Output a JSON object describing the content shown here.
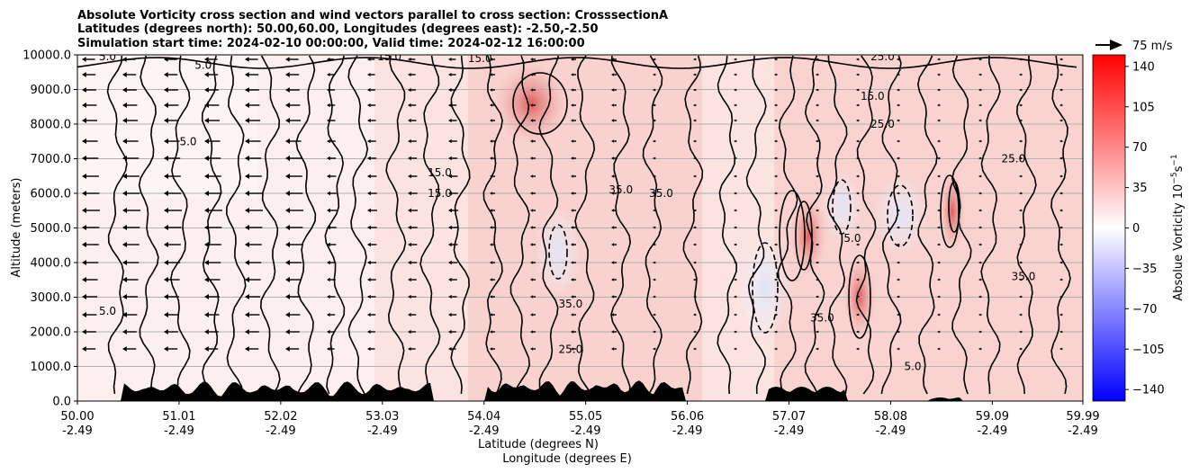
{
  "chart_data": {
    "type": "heatmap",
    "title_lines": [
      "Absolute Vorticity cross section and wind vectors parallel to cross section: CrosssectionA",
      "Latitudes (degrees north): 50.00,60.00, Longitudes (degrees east): -2.50,-2.50",
      "Simulation start time: 2024-02-10 00:00:00, Valid time: 2024-02-12 16:00:00"
    ],
    "ylabel": "Altitude (meters)",
    "xlabel_line1": "Latitude (degrees N)",
    "xlabel_line2": "Longitude (degrees E)",
    "ylim": [
      0,
      10000
    ],
    "yticks": [
      "0.0",
      "1000.0",
      "2000.0",
      "3000.0",
      "4000.0",
      "5000.0",
      "6000.0",
      "7000.0",
      "8000.0",
      "9000.0",
      "10000.0"
    ],
    "xlim": [
      50.0,
      59.99
    ],
    "xticks_lat": [
      "50.00",
      "51.01",
      "52.02",
      "53.03",
      "54.04",
      "55.05",
      "56.06",
      "57.07",
      "58.08",
      "59.09",
      "59.99"
    ],
    "xticks_lon": [
      "-2.49",
      "-2.49",
      "-2.49",
      "-2.49",
      "-2.49",
      "-2.49",
      "-2.49",
      "-2.49",
      "-2.49",
      "-2.49",
      "-2.49"
    ],
    "grid": "horizontal",
    "colorbar": {
      "label": "Absolue Vorticity 10",
      "label_sup": "−5",
      "label_mid": "s",
      "label_sup2": "−1",
      "range": [
        -150,
        150
      ],
      "ticks": [
        "140",
        "105",
        "70",
        "35",
        "0",
        "−35",
        "−70",
        "−105",
        "−140"
      ],
      "tick_values": [
        140,
        105,
        70,
        35,
        0,
        -35,
        -70,
        -105,
        -140
      ],
      "colormap": "bwr"
    },
    "quiver_key": "75 m/s",
    "contour_labels": [
      {
        "text": "5.0",
        "lat": 50.3,
        "alt": 9950
      },
      {
        "text": "5.0",
        "lat": 51.25,
        "alt": 9700
      },
      {
        "text": "15.0",
        "lat": 53.1,
        "alt": 9950
      },
      {
        "text": "15.0",
        "lat": 54.0,
        "alt": 9900
      },
      {
        "text": "25.0",
        "lat": 58.0,
        "alt": 9950
      },
      {
        "text": "15.0",
        "lat": 57.9,
        "alt": 8800
      },
      {
        "text": "25.0",
        "lat": 58.0,
        "alt": 8000
      },
      {
        "text": "25.0",
        "lat": 59.3,
        "alt": 7000
      },
      {
        "text": "5.0",
        "lat": 51.1,
        "alt": 7500
      },
      {
        "text": "15.0",
        "lat": 53.6,
        "alt": 6600
      },
      {
        "text": "15.0",
        "lat": 53.6,
        "alt": 6000
      },
      {
        "text": "35.0",
        "lat": 55.4,
        "alt": 6100
      },
      {
        "text": "35.0",
        "lat": 55.8,
        "alt": 6000
      },
      {
        "text": "5.0",
        "lat": 57.7,
        "alt": 4700
      },
      {
        "text": "35.0",
        "lat": 59.4,
        "alt": 3600
      },
      {
        "text": "35.0",
        "lat": 54.9,
        "alt": 2800
      },
      {
        "text": "5.0",
        "lat": 50.3,
        "alt": 2600
      },
      {
        "text": "25.0",
        "lat": 54.9,
        "alt": 1500
      },
      {
        "text": "35.0",
        "lat": 57.4,
        "alt": 2400
      },
      {
        "text": "5.0",
        "lat": 58.3,
        "alt": 1000
      }
    ]
  }
}
